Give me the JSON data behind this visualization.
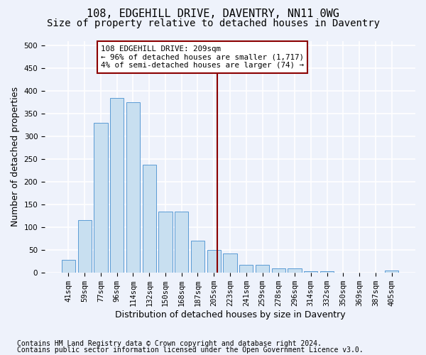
{
  "title": "108, EDGEHILL DRIVE, DAVENTRY, NN11 0WG",
  "subtitle": "Size of property relative to detached houses in Daventry",
  "xlabel": "Distribution of detached houses by size in Daventry",
  "ylabel": "Number of detached properties",
  "categories": [
    "41sqm",
    "59sqm",
    "77sqm",
    "96sqm",
    "114sqm",
    "132sqm",
    "150sqm",
    "168sqm",
    "187sqm",
    "205sqm",
    "223sqm",
    "241sqm",
    "259sqm",
    "278sqm",
    "296sqm",
    "314sqm",
    "332sqm",
    "350sqm",
    "369sqm",
    "387sqm",
    "405sqm"
  ],
  "bar_values": [
    28,
    116,
    330,
    385,
    375,
    237,
    135,
    135,
    70,
    50,
    42,
    17,
    17,
    10,
    10,
    3,
    3,
    1,
    1,
    0,
    5
  ],
  "bar_color": "#c8dff0",
  "bar_edge_color": "#5b9bd5",
  "marker_line_color": "#8b0000",
  "annotation_text": "108 EDGEHILL DRIVE: 209sqm\n← 96% of detached houses are smaller (1,717)\n4% of semi-detached houses are larger (74) →",
  "annotation_box_color": "#ffffff",
  "annotation_box_edge_color": "#8b0000",
  "ylim": [
    0,
    510
  ],
  "yticks": [
    0,
    50,
    100,
    150,
    200,
    250,
    300,
    350,
    400,
    450,
    500
  ],
  "bg_color": "#eef2fb",
  "grid_color": "#ffffff",
  "footer_line1": "Contains HM Land Registry data © Crown copyright and database right 2024.",
  "footer_line2": "Contains public sector information licensed under the Open Government Licence v3.0.",
  "title_fontsize": 11,
  "subtitle_fontsize": 10,
  "axis_label_fontsize": 9,
  "tick_fontsize": 7.5,
  "footer_fontsize": 7
}
